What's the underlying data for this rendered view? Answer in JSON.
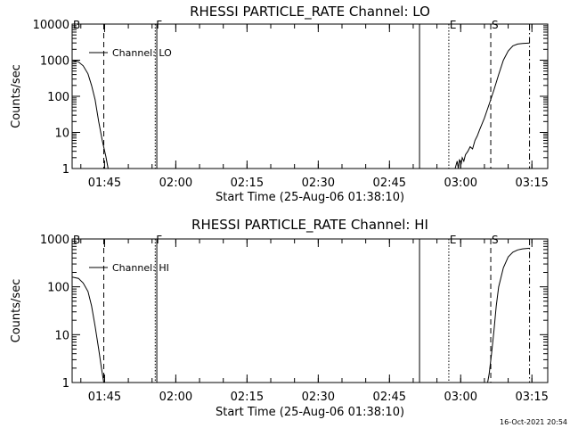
{
  "chart_data": [
    {
      "type": "line",
      "title": "RHESSI PARTICLE_RATE Channel: LO",
      "xlabel": "Start Time (25-Aug-06 01:38:10)",
      "ylabel": "Counts/sec",
      "yscale": "log",
      "ylim": [
        1,
        10000
      ],
      "xlim": [
        "01:38:10",
        "03:18:20"
      ],
      "x_ticks": [
        "01:45",
        "02:00",
        "02:15",
        "02:30",
        "02:45",
        "03:00",
        "03:15"
      ],
      "y_ticks": [
        "1",
        "10",
        "100",
        "1000",
        "10000"
      ],
      "legend": {
        "placement": "top-left",
        "entries": [
          "Channel: LO"
        ]
      },
      "series": [
        {
          "name": "Channel: LO",
          "segments": [
            [
              [
                "01:38:10",
                1000
              ],
              [
                "01:39:30",
                900
              ],
              [
                "01:40:30",
                700
              ],
              [
                "01:41:30",
                420
              ],
              [
                "01:42:15",
                200
              ],
              [
                "01:43:00",
                80
              ],
              [
                "01:43:45",
                20
              ],
              [
                "01:44:30",
                6
              ],
              [
                "01:45:15",
                2.2
              ],
              [
                "01:45:45",
                1
              ]
            ],
            [
              [
                "02:58:50",
                1
              ],
              [
                "02:59:15",
                1.6
              ],
              [
                "02:59:30",
                1
              ],
              [
                "02:59:45",
                1.8
              ],
              [
                "03:00:05",
                1.3
              ],
              [
                "03:00:20",
                2
              ],
              [
                "03:00:40",
                1.6
              ],
              [
                "03:01:00",
                2.4
              ],
              [
                "03:01:30",
                3
              ],
              [
                "03:02:00",
                4
              ],
              [
                "03:02:30",
                3.5
              ],
              [
                "03:03:00",
                6
              ],
              [
                "03:03:30",
                8
              ],
              [
                "03:04:00",
                12
              ],
              [
                "03:05:00",
                25
              ],
              [
                "03:06:00",
                60
              ],
              [
                "03:07:00",
                150
              ],
              [
                "03:08:00",
                400
              ],
              [
                "03:09:00",
                1000
              ],
              [
                "03:10:00",
                1800
              ],
              [
                "03:11:00",
                2500
              ],
              [
                "03:12:00",
                2800
              ],
              [
                "03:13:00",
                2900
              ],
              [
                "03:14:30",
                3000
              ]
            ]
          ]
        }
      ]
    },
    {
      "type": "line",
      "title": "RHESSI PARTICLE_RATE Channel: HI",
      "xlabel": "Start Time (25-Aug-06 01:38:10)",
      "ylabel": "Counts/sec",
      "yscale": "log",
      "ylim": [
        1,
        1000
      ],
      "xlim": [
        "01:38:10",
        "03:18:20"
      ],
      "x_ticks": [
        "01:45",
        "02:00",
        "02:15",
        "02:30",
        "02:45",
        "03:00",
        "03:15"
      ],
      "y_ticks": [
        "1",
        "10",
        "100",
        "1000"
      ],
      "legend": {
        "placement": "top-left",
        "entries": [
          "Channel: HI"
        ]
      },
      "series": [
        {
          "name": "Channel: HI",
          "segments": [
            [
              [
                "01:38:10",
                160
              ],
              [
                "01:39:30",
                150
              ],
              [
                "01:40:30",
                120
              ],
              [
                "01:41:30",
                80
              ],
              [
                "01:42:15",
                40
              ],
              [
                "01:43:00",
                15
              ],
              [
                "01:43:45",
                5
              ],
              [
                "01:44:20",
                2
              ],
              [
                "01:44:50",
                1
              ]
            ],
            [
              [
                "03:05:40",
                1
              ],
              [
                "03:06:00",
                1.5
              ],
              [
                "03:06:30",
                4
              ],
              [
                "03:07:00",
                12
              ],
              [
                "03:07:30",
                40
              ],
              [
                "03:08:00",
                100
              ],
              [
                "03:09:00",
                250
              ],
              [
                "03:10:00",
                420
              ],
              [
                "03:11:00",
                530
              ],
              [
                "03:12:00",
                590
              ],
              [
                "03:13:00",
                620
              ],
              [
                "03:14:30",
                640
              ]
            ]
          ]
        }
      ]
    }
  ],
  "markers": [
    {
      "label": "B",
      "time": "01:38:10",
      "style": "none"
    },
    {
      "label": "",
      "time": "01:44:50",
      "style": "dashed"
    },
    {
      "label": "F",
      "time": "01:55:40",
      "style": "dotted"
    },
    {
      "label": "",
      "time": "01:56:00",
      "style": "solid"
    },
    {
      "label": "",
      "time": "02:51:20",
      "style": "solid"
    },
    {
      "label": "E",
      "time": "02:57:30",
      "style": "dotted"
    },
    {
      "label": "S",
      "time": "03:06:20",
      "style": "dashed"
    },
    {
      "label": "",
      "time": "03:14:30",
      "style": "dashdot"
    }
  ],
  "footer": {
    "timestamp": "16-Oct-2021 20:54"
  }
}
